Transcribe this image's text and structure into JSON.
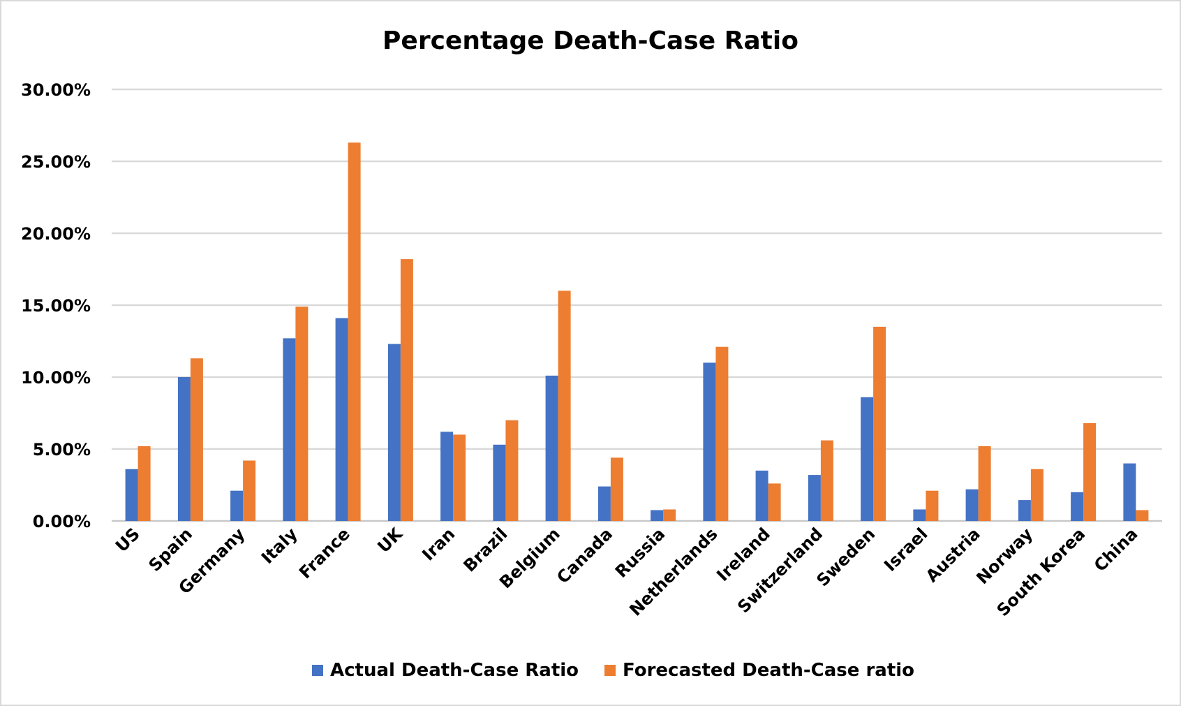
{
  "chart_data": {
    "type": "bar",
    "title": "Percentage Death-Case Ratio",
    "xlabel": "",
    "ylabel": "",
    "ylim": [
      0,
      30
    ],
    "y_ticks": [
      "0.00%",
      "5.00%",
      "10.00%",
      "15.00%",
      "20.00%",
      "25.00%",
      "30.00%"
    ],
    "y_tick_values": [
      0,
      5,
      10,
      15,
      20,
      25,
      30
    ],
    "grid": true,
    "legend_position": "bottom",
    "categories": [
      "US",
      "Spain",
      "Germany",
      "Italy",
      "France",
      "UK",
      "Iran",
      "Brazil",
      "Belgium",
      "Canada",
      "Russia",
      "Netherlands",
      "Ireland",
      "Switzerland",
      "Sweden",
      "Israel",
      "Austria",
      "Norway",
      "South Korea",
      "China"
    ],
    "series": [
      {
        "name": "Actual Death-Case Ratio",
        "color": "#4472c4",
        "values": [
          3.6,
          10.0,
          2.1,
          12.7,
          14.1,
          12.3,
          6.2,
          5.3,
          10.1,
          2.4,
          0.75,
          11.0,
          3.5,
          3.2,
          8.6,
          0.8,
          2.2,
          1.45,
          2.0,
          4.0
        ]
      },
      {
        "name": "Forecasted Death-Case ratio",
        "color": "#ed7d31",
        "values": [
          5.2,
          11.3,
          4.2,
          14.9,
          26.3,
          18.2,
          6.0,
          7.0,
          16.0,
          4.4,
          0.8,
          12.1,
          2.6,
          5.6,
          13.5,
          2.1,
          5.2,
          3.6,
          6.8,
          0.75
        ]
      }
    ]
  }
}
